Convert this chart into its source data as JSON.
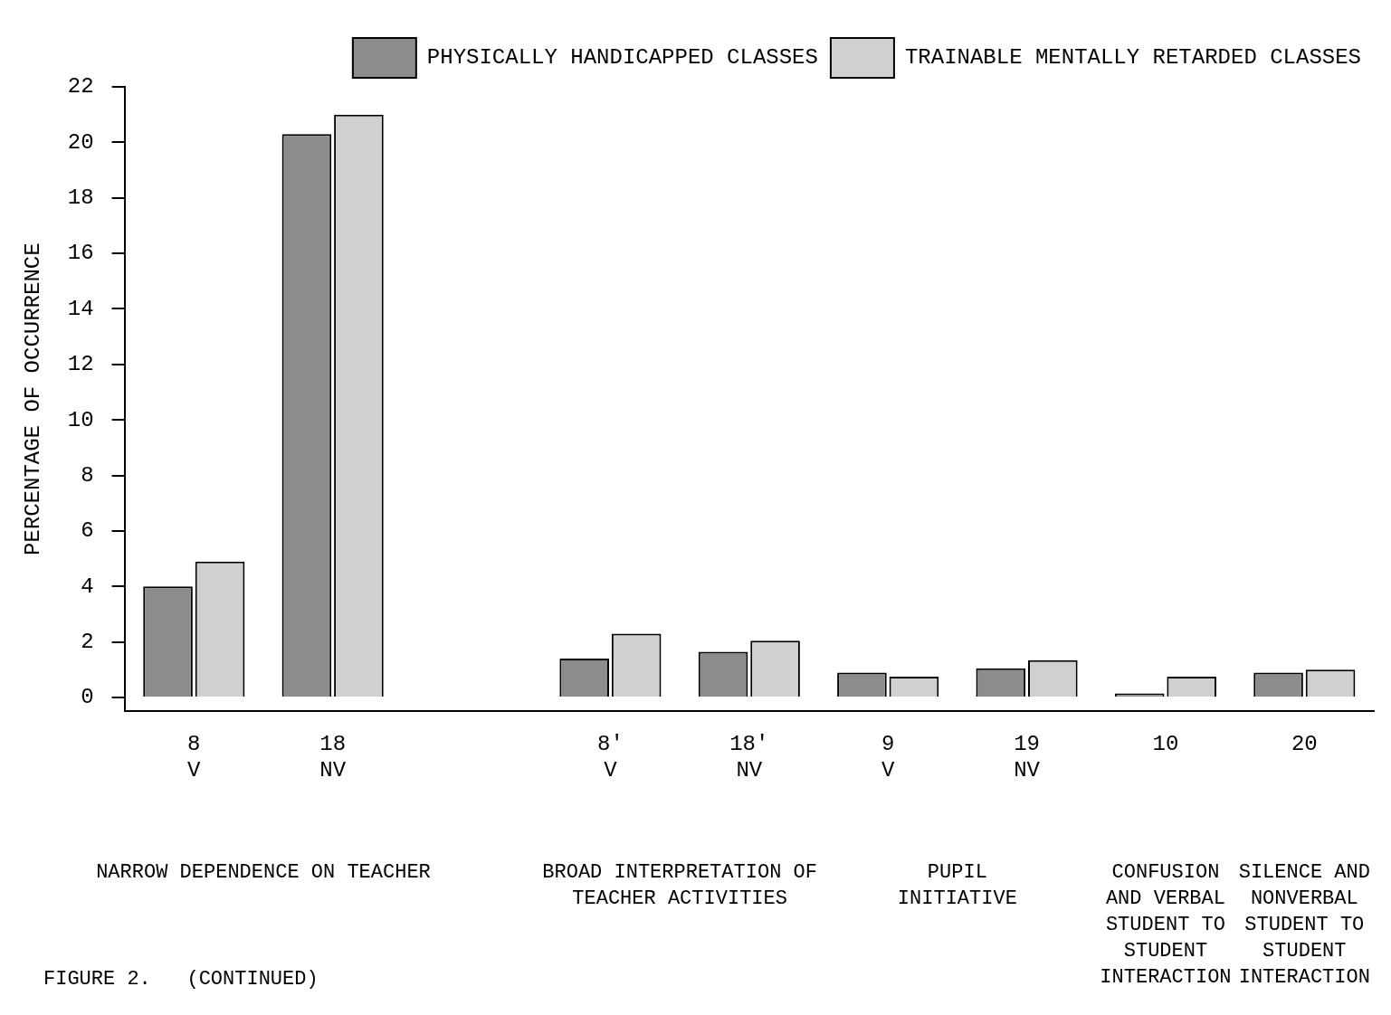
{
  "chart_data": {
    "type": "bar",
    "ylabel": "PERCENTAGE OF OCCURRENCE",
    "categories": [
      "8\nV",
      "18\nNV",
      null,
      "8′\nV",
      "18′\nNV",
      "9\nV",
      "19\nNV",
      "10",
      "20"
    ],
    "series": [
      {
        "name": "PHYSICALLY HANDICAPPED CLASSES",
        "color": "#8c8c8c",
        "values": [
          4.0,
          20.3,
          null,
          1.4,
          1.65,
          0.9,
          1.05,
          0.15,
          0.9
        ]
      },
      {
        "name": "TRAINABLE MENTALLY RETARDED CLASSES",
        "color": "#d0d0d0",
        "values": [
          4.9,
          21.0,
          null,
          2.3,
          2.05,
          0.75,
          1.35,
          0.75,
          1.0
        ]
      }
    ],
    "ylim": [
      -0.5,
      22
    ],
    "yticks": [
      0,
      2,
      4,
      6,
      8,
      10,
      12,
      14,
      16,
      18,
      20,
      22
    ],
    "grid": false,
    "legend": "top right",
    "annotations": [
      "NARROW DEPENDENCE ON TEACHER",
      "BROAD INTERPRETATION OF TEACHER ACTIVITIES",
      "PUPIL INITIATIVE",
      "CONFUSION AND VERBAL STUDENT TO STUDENT INTERACTION",
      "SILENCE AND NONVERBAL STUDENT TO STUDENT INTERACTION",
      "FIGURE 2.   (CONTINUED)"
    ]
  }
}
